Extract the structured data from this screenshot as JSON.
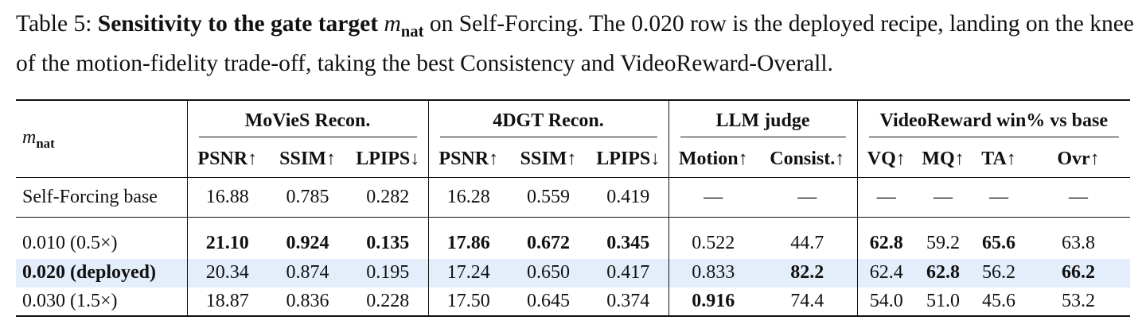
{
  "caption": {
    "label": "Table 5:",
    "bold": "Sensitivity to the gate target",
    "symbol": "m",
    "subscript": "nat",
    "text": "on Self-Forcing. The 0.020 row is the deployed recipe, landing on the knee of the motion-fidelity trade-off, taking the best Consistency and VideoReward-Overall."
  },
  "table": {
    "corner": {
      "symbol": "m",
      "subscript": "nat"
    },
    "groups": [
      "MoVieS Recon.",
      "4DGT Recon.",
      "LLM judge",
      "VideoReward win% vs base"
    ],
    "columns": [
      "PSNR↑",
      "SSIM↑",
      "LPIPS↓",
      "PSNR↑",
      "SSIM↑",
      "LPIPS↓",
      "Motion↑",
      "Consist.↑",
      "VQ↑",
      "MQ↑",
      "TA↑",
      "Ovr↑"
    ],
    "rows": [
      [
        "Self-Forcing base",
        "16.88",
        "0.785",
        "0.282",
        "16.28",
        "0.559",
        "0.419",
        "—",
        "—",
        "—",
        "—",
        "—",
        "—"
      ],
      [
        "0.010 (0.5×)",
        "21.10",
        "0.924",
        "0.135",
        "17.86",
        "0.672",
        "0.345",
        "0.522",
        "44.7",
        "62.8",
        "59.2",
        "65.6",
        "63.8"
      ],
      [
        "0.020 (deployed)",
        "20.34",
        "0.874",
        "0.195",
        "17.24",
        "0.650",
        "0.417",
        "0.833",
        "82.2",
        "62.4",
        "62.8",
        "56.2",
        "66.2"
      ],
      [
        "0.030 (1.5×)",
        "18.87",
        "0.836",
        "0.228",
        "17.50",
        "0.645",
        "0.374",
        "0.916",
        "74.4",
        "54.0",
        "51.0",
        "45.6",
        "53.2"
      ]
    ]
  }
}
